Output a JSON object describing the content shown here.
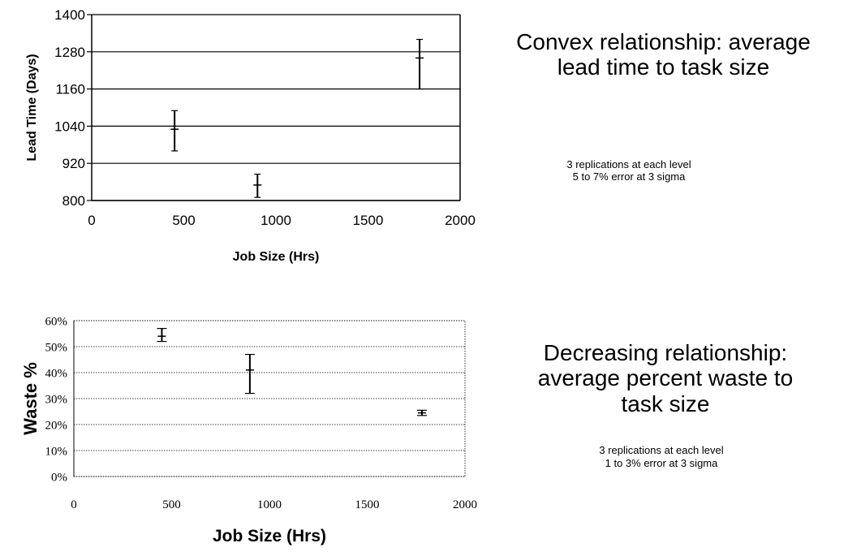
{
  "chart_data": [
    {
      "type": "scatter",
      "title": "",
      "xlabel": "Job Size (Hrs)",
      "ylabel": "Lead Time (Days)",
      "xlim": [
        0,
        2000
      ],
      "ylim": [
        800,
        1400
      ],
      "x_ticks": [
        "0",
        "500",
        "1000",
        "1500",
        "2000"
      ],
      "y_ticks": [
        "800",
        "920",
        "1040",
        "1160",
        "1280",
        "1400"
      ],
      "x_tick_values": [
        0,
        500,
        1000,
        1500,
        2000
      ],
      "y_tick_values": [
        800,
        920,
        1040,
        1160,
        1280,
        1400
      ],
      "grid": "horizontal",
      "series": [
        {
          "points": [
            {
              "x": 450,
              "y": 1030,
              "low": 960,
              "high": 1090
            },
            {
              "x": 900,
              "y": 850,
              "low": 810,
              "high": 885
            },
            {
              "x": 1780,
              "y": 1260,
              "low": 1160,
              "high": 1320
            }
          ]
        }
      ],
      "annotation": {
        "title_lines": [
          "Convex relationship: average",
          "lead time to task size"
        ],
        "note_lines": [
          "3 replications at each level",
          "5 to 7% error at 3 sigma"
        ]
      }
    },
    {
      "type": "scatter",
      "title": "",
      "xlabel": "Job Size (Hrs)",
      "ylabel": "Waste %",
      "xlim": [
        0,
        2000
      ],
      "ylim": [
        0,
        60
      ],
      "x_ticks": [
        "0",
        "500",
        "1000",
        "1500",
        "2000"
      ],
      "y_ticks": [
        "0%",
        "10%",
        "20%",
        "30%",
        "40%",
        "50%",
        "60%"
      ],
      "x_tick_values": [
        0,
        500,
        1000,
        1500,
        2000
      ],
      "y_tick_values": [
        0,
        10,
        20,
        30,
        40,
        50,
        60
      ],
      "grid": "horizontal",
      "series": [
        {
          "points": [
            {
              "x": 450,
              "y": 54,
              "low": 52,
              "high": 57
            },
            {
              "x": 900,
              "y": 41,
              "low": 32,
              "high": 47
            },
            {
              "x": 1780,
              "y": 24.5,
              "low": 23.5,
              "high": 25.5
            }
          ]
        }
      ],
      "annotation": {
        "title_lines": [
          "Decreasing relationship:",
          "average percent waste to",
          "task size"
        ],
        "note_lines": [
          "3 replications at each level",
          "1 to 3% error at 3 sigma"
        ]
      }
    }
  ]
}
